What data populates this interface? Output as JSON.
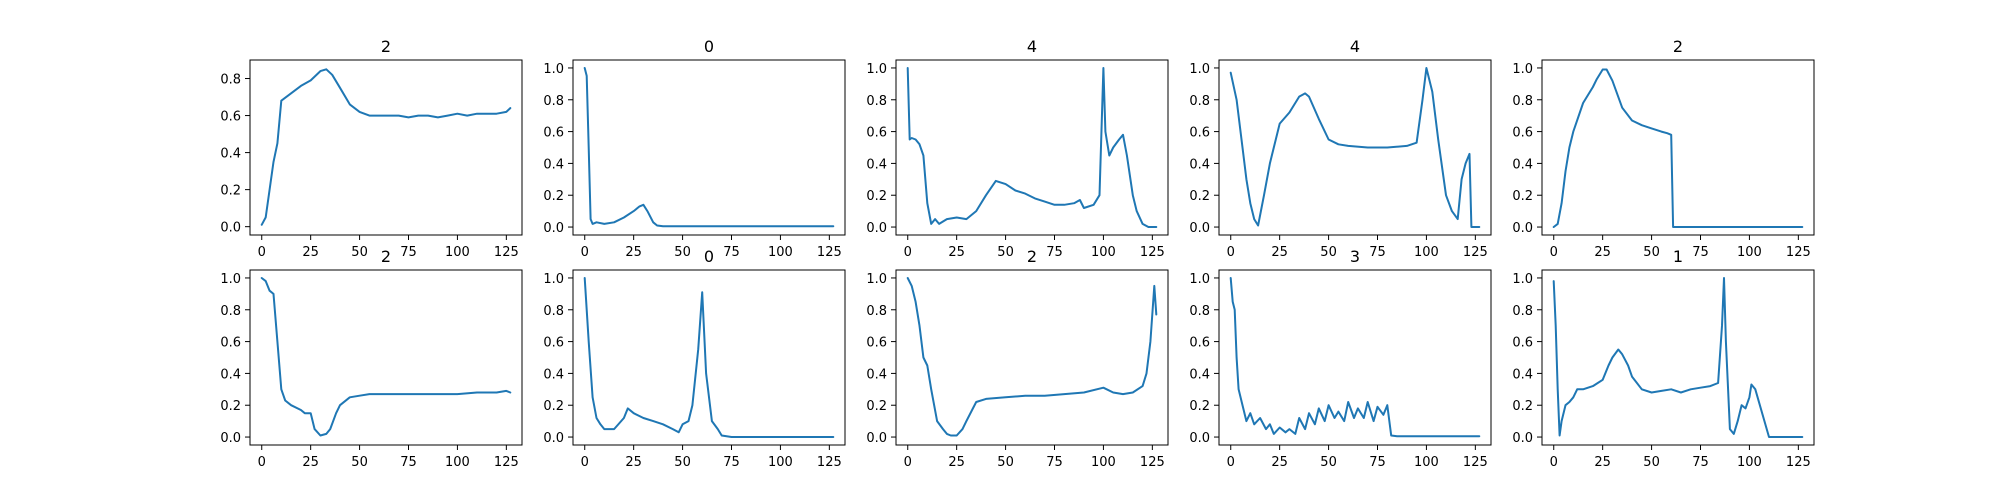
{
  "chart_data": [
    {
      "type": "line",
      "title": "2",
      "xlim": [
        -6,
        133
      ],
      "ylim": [
        -0.045,
        0.9
      ],
      "x_ticks": [
        0,
        25,
        50,
        75,
        100,
        125
      ],
      "y_ticks": [
        0.0,
        0.2,
        0.4,
        0.6,
        0.8
      ],
      "y_tick_labels": [
        "0.0",
        "0.2",
        "0.4",
        "0.6",
        "0.8"
      ],
      "series": [
        {
          "x": [
            0,
            2,
            4,
            6,
            8,
            10,
            15,
            20,
            25,
            30,
            33,
            36,
            40,
            45,
            50,
            55,
            60,
            65,
            70,
            75,
            80,
            85,
            90,
            95,
            100,
            105,
            110,
            115,
            120,
            125,
            127
          ],
          "y": [
            0.01,
            0.05,
            0.2,
            0.35,
            0.45,
            0.68,
            0.72,
            0.76,
            0.79,
            0.84,
            0.85,
            0.82,
            0.75,
            0.66,
            0.62,
            0.6,
            0.6,
            0.6,
            0.6,
            0.59,
            0.6,
            0.6,
            0.59,
            0.6,
            0.61,
            0.6,
            0.61,
            0.61,
            0.61,
            0.62,
            0.64
          ]
        }
      ]
    },
    {
      "type": "line",
      "title": "0",
      "xlim": [
        -6,
        133
      ],
      "ylim": [
        -0.05,
        1.05
      ],
      "x_ticks": [
        0,
        25,
        50,
        75,
        100,
        125
      ],
      "y_ticks": [
        0.0,
        0.2,
        0.4,
        0.6,
        0.8,
        1.0
      ],
      "y_tick_labels": [
        "0.0",
        "0.2",
        "0.4",
        "0.6",
        "0.8",
        "1.0"
      ],
      "series": [
        {
          "x": [
            0,
            1,
            2,
            3,
            4,
            6,
            10,
            15,
            20,
            25,
            28,
            30,
            32,
            35,
            37,
            40,
            50,
            60,
            70,
            80,
            90,
            100,
            110,
            120,
            127
          ],
          "y": [
            1.0,
            0.95,
            0.5,
            0.05,
            0.02,
            0.03,
            0.02,
            0.03,
            0.06,
            0.1,
            0.13,
            0.14,
            0.1,
            0.03,
            0.01,
            0.005,
            0.005,
            0.005,
            0.005,
            0.005,
            0.005,
            0.005,
            0.005,
            0.005,
            0.005
          ]
        }
      ]
    },
    {
      "type": "line",
      "title": "4",
      "xlim": [
        -6,
        133
      ],
      "ylim": [
        -0.05,
        1.05
      ],
      "x_ticks": [
        0,
        25,
        50,
        75,
        100,
        125
      ],
      "y_ticks": [
        0.0,
        0.2,
        0.4,
        0.6,
        0.8,
        1.0
      ],
      "y_tick_labels": [
        "0.0",
        "0.2",
        "0.4",
        "0.6",
        "0.8",
        "1.0"
      ],
      "series": [
        {
          "x": [
            0,
            1,
            2,
            4,
            6,
            8,
            10,
            12,
            14,
            16,
            20,
            25,
            30,
            35,
            40,
            45,
            50,
            55,
            60,
            65,
            70,
            75,
            80,
            85,
            88,
            90,
            95,
            98,
            100,
            101,
            103,
            105,
            108,
            110,
            112,
            115,
            117,
            120,
            123,
            127
          ],
          "y": [
            1.0,
            0.55,
            0.56,
            0.55,
            0.52,
            0.45,
            0.15,
            0.02,
            0.05,
            0.02,
            0.05,
            0.06,
            0.05,
            0.1,
            0.2,
            0.29,
            0.27,
            0.23,
            0.21,
            0.18,
            0.16,
            0.14,
            0.14,
            0.15,
            0.17,
            0.12,
            0.14,
            0.2,
            1.0,
            0.6,
            0.45,
            0.5,
            0.55,
            0.58,
            0.45,
            0.2,
            0.1,
            0.02,
            0.0,
            0.0
          ]
        }
      ]
    },
    {
      "type": "line",
      "title": "4",
      "xlim": [
        -6,
        133
      ],
      "ylim": [
        -0.05,
        1.05
      ],
      "x_ticks": [
        0,
        25,
        50,
        75,
        100,
        125
      ],
      "y_ticks": [
        0.0,
        0.2,
        0.4,
        0.6,
        0.8,
        1.0
      ],
      "y_tick_labels": [
        "0.0",
        "0.2",
        "0.4",
        "0.6",
        "0.8",
        "1.0"
      ],
      "series": [
        {
          "x": [
            0,
            3,
            6,
            8,
            10,
            12,
            14,
            17,
            20,
            25,
            30,
            35,
            38,
            40,
            45,
            50,
            55,
            60,
            70,
            80,
            90,
            95,
            98,
            100,
            103,
            106,
            110,
            113,
            116,
            118,
            120,
            122,
            123,
            125,
            127
          ],
          "y": [
            0.97,
            0.8,
            0.5,
            0.3,
            0.15,
            0.05,
            0.01,
            0.2,
            0.4,
            0.65,
            0.72,
            0.82,
            0.84,
            0.82,
            0.68,
            0.55,
            0.52,
            0.51,
            0.5,
            0.5,
            0.51,
            0.53,
            0.8,
            1.0,
            0.85,
            0.55,
            0.2,
            0.1,
            0.05,
            0.3,
            0.4,
            0.46,
            0.0,
            0.0,
            0.0
          ]
        }
      ]
    },
    {
      "type": "line",
      "title": "2",
      "xlim": [
        -6,
        133
      ],
      "ylim": [
        -0.05,
        1.05
      ],
      "x_ticks": [
        0,
        25,
        50,
        75,
        100,
        125
      ],
      "y_ticks": [
        0.0,
        0.2,
        0.4,
        0.6,
        0.8,
        1.0
      ],
      "y_tick_labels": [
        "0.0",
        "0.2",
        "0.4",
        "0.6",
        "0.8",
        "1.0"
      ],
      "series": [
        {
          "x": [
            0,
            2,
            4,
            6,
            8,
            10,
            15,
            20,
            22,
            25,
            27,
            30,
            35,
            40,
            45,
            50,
            55,
            58,
            60,
            61,
            62,
            70,
            80,
            90,
            100,
            110,
            120,
            127
          ],
          "y": [
            0.0,
            0.02,
            0.15,
            0.35,
            0.5,
            0.6,
            0.78,
            0.88,
            0.93,
            0.99,
            0.99,
            0.92,
            0.75,
            0.67,
            0.64,
            0.62,
            0.6,
            0.59,
            0.58,
            0.0,
            0.0,
            0.0,
            0.0,
            0.0,
            0.0,
            0.0,
            0.0,
            0.0
          ]
        }
      ]
    },
    {
      "type": "line",
      "title": "2",
      "xlim": [
        -6,
        133
      ],
      "ylim": [
        -0.05,
        1.05
      ],
      "x_ticks": [
        0,
        25,
        50,
        75,
        100,
        125
      ],
      "y_ticks": [
        0.0,
        0.2,
        0.4,
        0.6,
        0.8,
        1.0
      ],
      "y_tick_labels": [
        "0.0",
        "0.2",
        "0.4",
        "0.6",
        "0.8",
        "1.0"
      ],
      "series": [
        {
          "x": [
            0,
            2,
            4,
            6,
            8,
            10,
            12,
            15,
            20,
            22,
            25,
            27,
            30,
            33,
            35,
            38,
            40,
            45,
            50,
            55,
            60,
            70,
            80,
            90,
            100,
            110,
            120,
            125,
            127
          ],
          "y": [
            1.0,
            0.98,
            0.92,
            0.9,
            0.6,
            0.3,
            0.23,
            0.2,
            0.17,
            0.15,
            0.15,
            0.05,
            0.01,
            0.02,
            0.05,
            0.15,
            0.2,
            0.25,
            0.26,
            0.27,
            0.27,
            0.27,
            0.27,
            0.27,
            0.27,
            0.28,
            0.28,
            0.29,
            0.28
          ]
        }
      ]
    },
    {
      "type": "line",
      "title": "0",
      "xlim": [
        -6,
        133
      ],
      "ylim": [
        -0.05,
        1.05
      ],
      "x_ticks": [
        0,
        25,
        50,
        75,
        100,
        125
      ],
      "y_ticks": [
        0.0,
        0.2,
        0.4,
        0.6,
        0.8,
        1.0
      ],
      "y_tick_labels": [
        "0.0",
        "0.2",
        "0.4",
        "0.6",
        "0.8",
        "1.0"
      ],
      "series": [
        {
          "x": [
            0,
            2,
            4,
            6,
            8,
            10,
            15,
            20,
            22,
            25,
            30,
            35,
            40,
            45,
            48,
            50,
            53,
            55,
            58,
            60,
            62,
            65,
            68,
            70,
            75,
            80,
            90,
            100,
            110,
            120,
            127
          ],
          "y": [
            1.0,
            0.6,
            0.25,
            0.12,
            0.08,
            0.05,
            0.05,
            0.12,
            0.18,
            0.15,
            0.12,
            0.1,
            0.08,
            0.05,
            0.03,
            0.08,
            0.1,
            0.2,
            0.55,
            0.91,
            0.4,
            0.1,
            0.05,
            0.01,
            0.0,
            0.0,
            0.0,
            0.0,
            0.0,
            0.0,
            0.0
          ]
        }
      ]
    },
    {
      "type": "line",
      "title": "2",
      "xlim": [
        -6,
        133
      ],
      "ylim": [
        -0.05,
        1.05
      ],
      "x_ticks": [
        0,
        25,
        50,
        75,
        100,
        125
      ],
      "y_ticks": [
        0.0,
        0.2,
        0.4,
        0.6,
        0.8,
        1.0
      ],
      "y_tick_labels": [
        "0.0",
        "0.2",
        "0.4",
        "0.6",
        "0.8",
        "1.0"
      ],
      "series": [
        {
          "x": [
            0,
            2,
            4,
            6,
            8,
            10,
            12,
            15,
            18,
            20,
            22,
            25,
            28,
            30,
            35,
            40,
            50,
            60,
            70,
            80,
            90,
            100,
            105,
            110,
            115,
            120,
            122,
            124,
            126,
            127
          ],
          "y": [
            1.0,
            0.95,
            0.85,
            0.7,
            0.5,
            0.45,
            0.3,
            0.1,
            0.05,
            0.02,
            0.01,
            0.01,
            0.05,
            0.1,
            0.22,
            0.24,
            0.25,
            0.26,
            0.26,
            0.27,
            0.28,
            0.31,
            0.28,
            0.27,
            0.28,
            0.32,
            0.4,
            0.6,
            0.95,
            0.77
          ]
        }
      ]
    },
    {
      "type": "line",
      "title": "3",
      "xlim": [
        -6,
        133
      ],
      "ylim": [
        -0.05,
        1.05
      ],
      "x_ticks": [
        0,
        25,
        50,
        75,
        100,
        125
      ],
      "y_ticks": [
        0.0,
        0.2,
        0.4,
        0.6,
        0.8,
        1.0
      ],
      "y_tick_labels": [
        "0.0",
        "0.2",
        "0.4",
        "0.6",
        "0.8",
        "1.0"
      ],
      "series": [
        {
          "x": [
            0,
            1,
            2,
            3,
            4,
            6,
            8,
            10,
            12,
            15,
            18,
            20,
            22,
            25,
            28,
            30,
            33,
            35,
            38,
            40,
            43,
            45,
            48,
            50,
            53,
            55,
            58,
            60,
            63,
            65,
            68,
            70,
            73,
            75,
            78,
            80,
            82,
            85,
            90,
            100,
            110,
            120,
            127
          ],
          "y": [
            1.0,
            0.85,
            0.8,
            0.5,
            0.3,
            0.2,
            0.1,
            0.15,
            0.08,
            0.12,
            0.05,
            0.08,
            0.02,
            0.06,
            0.03,
            0.05,
            0.02,
            0.12,
            0.05,
            0.15,
            0.08,
            0.18,
            0.1,
            0.2,
            0.12,
            0.16,
            0.1,
            0.22,
            0.12,
            0.18,
            0.12,
            0.22,
            0.1,
            0.19,
            0.14,
            0.2,
            0.01,
            0.005,
            0.005,
            0.005,
            0.005,
            0.005,
            0.005
          ]
        }
      ]
    },
    {
      "type": "line",
      "title": "1",
      "xlim": [
        -6,
        133
      ],
      "ylim": [
        -0.05,
        1.05
      ],
      "x_ticks": [
        0,
        25,
        50,
        75,
        100,
        125
      ],
      "y_ticks": [
        0.0,
        0.2,
        0.4,
        0.6,
        0.8,
        1.0
      ],
      "y_tick_labels": [
        "0.0",
        "0.2",
        "0.4",
        "0.6",
        "0.8",
        "1.0"
      ],
      "series": [
        {
          "x": [
            0,
            1,
            2,
            3,
            4,
            6,
            8,
            10,
            12,
            15,
            20,
            25,
            28,
            30,
            33,
            35,
            38,
            40,
            45,
            50,
            55,
            60,
            65,
            70,
            75,
            80,
            84,
            86,
            87,
            88,
            90,
            92,
            94,
            96,
            98,
            100,
            101,
            103,
            110,
            120,
            127
          ],
          "y": [
            0.98,
            0.7,
            0.3,
            0.01,
            0.1,
            0.2,
            0.22,
            0.25,
            0.3,
            0.3,
            0.32,
            0.36,
            0.45,
            0.5,
            0.55,
            0.52,
            0.45,
            0.38,
            0.3,
            0.28,
            0.29,
            0.3,
            0.28,
            0.3,
            0.31,
            0.32,
            0.34,
            0.7,
            1.0,
            0.6,
            0.05,
            0.02,
            0.1,
            0.2,
            0.18,
            0.25,
            0.33,
            0.3,
            0.0,
            0.0,
            0.0
          ]
        }
      ]
    }
  ]
}
